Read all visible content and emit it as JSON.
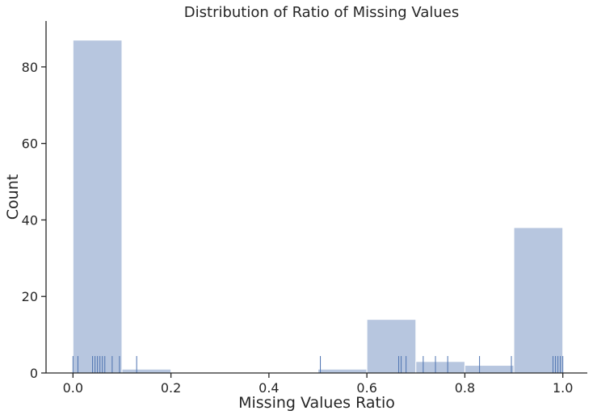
{
  "chart_data": {
    "type": "bar",
    "title": "Distribution of Ratio of Missing Values",
    "xlabel": "Missing Values Ratio",
    "ylabel": "Count",
    "xlim": [
      -0.055,
      1.05
    ],
    "ylim": [
      0,
      92
    ],
    "xticks": [
      0.0,
      0.2,
      0.4,
      0.6,
      0.8,
      1.0
    ],
    "xtick_labels": [
      "0.0",
      "0.2",
      "0.4",
      "0.6",
      "0.8",
      "1.0"
    ],
    "yticks": [
      0,
      20,
      40,
      60,
      80
    ],
    "ytick_labels": [
      "0",
      "20",
      "40",
      "60",
      "80"
    ],
    "bins": [
      {
        "x0": 0.0,
        "x1": 0.1,
        "count": 87
      },
      {
        "x0": 0.1,
        "x1": 0.2,
        "count": 1
      },
      {
        "x0": 0.2,
        "x1": 0.3,
        "count": 0
      },
      {
        "x0": 0.3,
        "x1": 0.4,
        "count": 0
      },
      {
        "x0": 0.4,
        "x1": 0.5,
        "count": 0
      },
      {
        "x0": 0.5,
        "x1": 0.6,
        "count": 1
      },
      {
        "x0": 0.6,
        "x1": 0.7,
        "count": 14
      },
      {
        "x0": 0.7,
        "x1": 0.8,
        "count": 3
      },
      {
        "x0": 0.8,
        "x1": 0.9,
        "count": 2
      },
      {
        "x0": 0.9,
        "x1": 1.0,
        "count": 38
      }
    ],
    "rug": [
      0.0,
      0.01,
      0.04,
      0.045,
      0.05,
      0.055,
      0.06,
      0.065,
      0.08,
      0.095,
      0.13,
      0.505,
      0.665,
      0.67,
      0.68,
      0.715,
      0.74,
      0.765,
      0.83,
      0.895,
      0.98,
      0.985,
      0.99,
      0.995,
      1.0
    ],
    "grid": false,
    "colors": {
      "bar": "#b7c6df",
      "rug": "#4c72b0"
    }
  }
}
